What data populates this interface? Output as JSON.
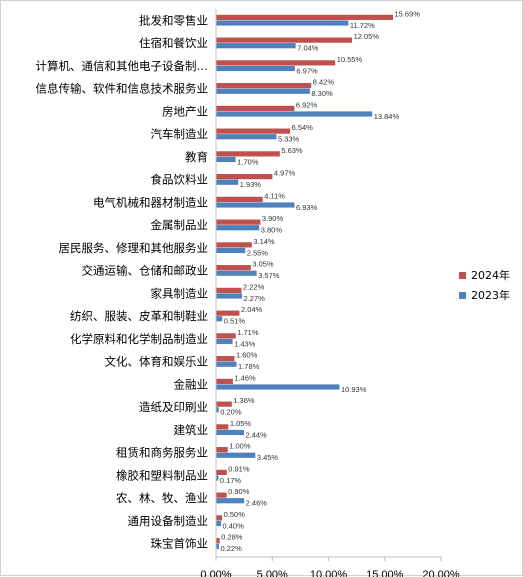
{
  "chart_data": {
    "type": "bar",
    "orientation": "horizontal",
    "categories": [
      "批发和零售业",
      "住宿和餐饮业",
      "计算机、通信和其他电子设备制…",
      "信息传输、软件和信息技术服务业",
      "房地产业",
      "汽车制造业",
      "教育",
      "食品饮料业",
      "电气机械和器材制造业",
      "金属制品业",
      "居民服务、修理和其他服务业",
      "交通运输、仓储和邮政业",
      "家具制造业",
      "纺织、服装、皮革和制鞋业",
      "化学原料和化学制品制造业",
      "文化、体育和娱乐业",
      "金融业",
      "造纸及印刷业",
      "建筑业",
      "租赁和商务服务业",
      "橡胶和塑料制品业",
      "农、林、牧、渔业",
      "通用设备制造业",
      "珠宝首饰业"
    ],
    "series": [
      {
        "name": "2024年",
        "color": "#c0504d",
        "values": [
          15.69,
          12.05,
          10.55,
          8.42,
          6.92,
          6.54,
          5.63,
          4.97,
          4.11,
          3.9,
          3.14,
          3.05,
          2.22,
          2.04,
          1.71,
          1.6,
          1.46,
          1.36,
          1.05,
          1.0,
          0.91,
          0.9,
          0.5,
          0.28
        ],
        "labels": [
          "15.69%",
          "12.05%",
          "10.55%",
          "8.42%",
          "6.92%",
          "6.54%",
          "5.63%",
          "4.97%",
          "4.11%",
          "3.90%",
          "3.14%",
          "3.05%",
          "2.22%",
          "2.04%",
          "1.71%",
          "1.60%",
          "1.46%",
          "1.36%",
          "1.05%",
          "1.00%",
          "0.91%",
          "0.90%",
          "0.50%",
          "0.28%"
        ]
      },
      {
        "name": "2023年",
        "color": "#4f81bd",
        "values": [
          11.72,
          7.04,
          6.97,
          8.3,
          13.84,
          5.33,
          1.7,
          1.93,
          6.93,
          3.8,
          2.55,
          3.57,
          2.27,
          0.51,
          1.43,
          1.78,
          10.93,
          0.2,
          2.44,
          3.45,
          0.17,
          2.46,
          0.4,
          0.22
        ],
        "labels": [
          "11.72%",
          "7.04%",
          "6.97%",
          "8.30%",
          "13.84%",
          "5.33%",
          "1.70%",
          "1.93%",
          "6.93%",
          "3.80%",
          "2.55%",
          "3.57%",
          "2.27%",
          "0.51%",
          "1.43%",
          "1.78%",
          "10.93%",
          "0.20%",
          "2.44%",
          "3.45%",
          "0.17%",
          "2.46%",
          "0.40%",
          "0.22%"
        ]
      }
    ],
    "xlim": [
      0,
      20
    ],
    "xticks": [
      "0.00%",
      "5.00%",
      "10.00%",
      "15.00%",
      "20.00%"
    ],
    "legend": {
      "position": "right",
      "items": [
        "2024年",
        "2023年"
      ]
    },
    "grid": false
  }
}
